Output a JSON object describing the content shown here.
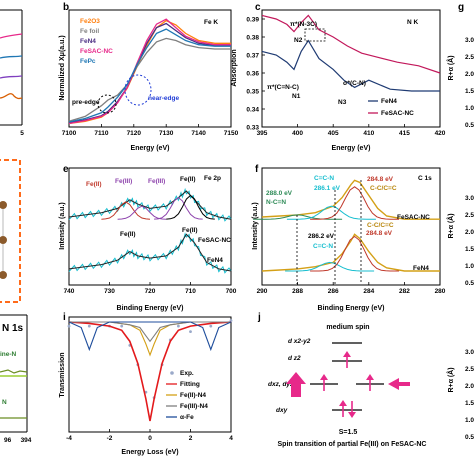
{
  "figure": {
    "panel_labels": {
      "b": "b",
      "c": "c",
      "e": "e",
      "f": "f",
      "g": "g",
      "i": "i",
      "j": "j"
    },
    "left_strip": {
      "x_end_tick": "5",
      "panel_label": "N 1s",
      "labels": [
        "ine-N",
        "N"
      ],
      "ticks": [
        "96",
        "394"
      ]
    },
    "right_strip": {
      "ylabel": "R+α (Å)",
      "ticks": [
        "3.0",
        "2.5",
        "2.0",
        "1.5",
        "1.0",
        "0.5",
        "3.0",
        "2.5",
        "2.0",
        "1.5",
        "1.0",
        "0.5",
        "3.0",
        "2.5",
        "2.0",
        "1.5",
        "1.0",
        "0.5"
      ]
    }
  },
  "chart_data": [
    {
      "id": "b",
      "type": "line",
      "subtitle": "Fe K",
      "xlabel": "Energy (eV)",
      "ylabel": "Normalized Xμ(a.u.)",
      "xlim": [
        7100,
        7150
      ],
      "x_ticks": [
        "7100",
        "7110",
        "7120",
        "7130",
        "7140",
        "7150"
      ],
      "series": [
        {
          "name": "Fe2O3",
          "color": "#ff7f0e",
          "x": [
            7100,
            7105,
            7110,
            7112,
            7115,
            7118,
            7121,
            7124,
            7127,
            7130,
            7133,
            7136,
            7140,
            7145,
            7150
          ],
          "y": [
            0.05,
            0.08,
            0.14,
            0.2,
            0.35,
            0.55,
            0.85,
            1.15,
            1.4,
            1.5,
            1.44,
            1.32,
            1.22,
            1.18,
            1.18
          ]
        },
        {
          "name": "Fe foil",
          "color": "#7f7f7f",
          "x": [
            7100,
            7105,
            7110,
            7112,
            7115,
            7118,
            7121,
            7124,
            7127,
            7130,
            7133,
            7136,
            7140,
            7145,
            7150
          ],
          "y": [
            0.08,
            0.15,
            0.3,
            0.38,
            0.45,
            0.6,
            0.85,
            1.05,
            1.2,
            1.25,
            1.22,
            1.16,
            1.12,
            1.1,
            1.1
          ]
        },
        {
          "name": "FeN4",
          "color": "#4b2e83",
          "x": [
            7100,
            7105,
            7110,
            7112,
            7115,
            7118,
            7121,
            7124,
            7127,
            7130,
            7133,
            7136,
            7140,
            7145,
            7150
          ],
          "y": [
            0.06,
            0.1,
            0.16,
            0.22,
            0.36,
            0.56,
            0.88,
            1.18,
            1.4,
            1.46,
            1.36,
            1.26,
            1.18,
            1.15,
            1.15
          ]
        },
        {
          "name": "FeSAC-NC",
          "color": "#e7298a",
          "x": [
            7100,
            7105,
            7110,
            7112,
            7115,
            7118,
            7121,
            7124,
            7127,
            7130,
            7133,
            7136,
            7140,
            7145,
            7150
          ],
          "y": [
            0.05,
            0.09,
            0.15,
            0.2,
            0.34,
            0.56,
            0.9,
            1.22,
            1.45,
            1.52,
            1.4,
            1.28,
            1.2,
            1.16,
            1.16
          ]
        },
        {
          "name": "FePc",
          "color": "#1f77b4",
          "x": [
            7100,
            7105,
            7110,
            7112,
            7115,
            7118,
            7121,
            7124,
            7127,
            7130,
            7133,
            7136,
            7140,
            7145,
            7150
          ],
          "y": [
            0.07,
            0.12,
            0.2,
            0.28,
            0.42,
            0.6,
            0.88,
            1.12,
            1.32,
            1.38,
            1.3,
            1.22,
            1.16,
            1.14,
            1.14
          ]
        }
      ],
      "annotations": [
        "pre-edge",
        "near-edge"
      ]
    },
    {
      "id": "c",
      "type": "line",
      "subtitle": "N K",
      "xlabel": "Energy (eV)",
      "ylabel": "Absorption",
      "xlim": [
        395,
        420
      ],
      "ylim": [
        0.33,
        0.395
      ],
      "x_ticks": [
        "395",
        "400",
        "405",
        "410",
        "415",
        "420"
      ],
      "y_ticks": [
        "0.39",
        "0.38",
        "0.37",
        "0.36",
        "0.35",
        "0.34",
        "0.33"
      ],
      "series": [
        {
          "name": "FeN4",
          "color": "#1f3b73",
          "x": [
            395,
            397,
            398.5,
            399.5,
            400.5,
            401.5,
            403,
            405,
            406.5,
            408,
            410,
            413,
            416,
            420
          ],
          "y": [
            0.372,
            0.37,
            0.366,
            0.362,
            0.372,
            0.378,
            0.368,
            0.362,
            0.356,
            0.352,
            0.356,
            0.351,
            0.35,
            0.35
          ]
        },
        {
          "name": "FeSAC-NC",
          "color": "#c2185b",
          "x": [
            395,
            397,
            398.5,
            399.5,
            400.5,
            401.5,
            403,
            405,
            407,
            409,
            411,
            414,
            417,
            420
          ],
          "y": [
            0.392,
            0.39,
            0.387,
            0.383,
            0.388,
            0.392,
            0.384,
            0.38,
            0.375,
            0.371,
            0.369,
            0.366,
            0.364,
            0.36
          ]
        }
      ],
      "annotations": [
        "π*(N-3C)",
        "N2",
        "π*(C=N-C)",
        "N1",
        "N3",
        "σ*(C-N)"
      ]
    },
    {
      "id": "e",
      "type": "line",
      "subtitle": "Fe 2p",
      "xlabel": "Binding Energy (eV)",
      "ylabel": "Intensity (a.u.)",
      "xlim": [
        740,
        700
      ],
      "x_ticks": [
        "740",
        "730",
        "720",
        "710",
        "700"
      ],
      "series": [
        {
          "name": "FeSAC-NC",
          "color": "#17becf",
          "x": [
            740,
            736,
            732,
            728,
            725,
            723,
            720,
            716,
            713,
            711,
            709,
            706,
            703,
            700
          ],
          "y": [
            0.62,
            0.64,
            0.66,
            0.7,
            0.78,
            0.74,
            0.7,
            0.72,
            0.8,
            0.86,
            0.78,
            0.66,
            0.62,
            0.6
          ]
        },
        {
          "name": "FeN4",
          "color": "#17becf",
          "x": [
            740,
            736,
            732,
            728,
            725,
            723,
            720,
            716,
            713,
            711,
            709,
            706,
            703,
            700
          ],
          "y": [
            0.14,
            0.16,
            0.18,
            0.22,
            0.3,
            0.26,
            0.24,
            0.26,
            0.34,
            0.46,
            0.38,
            0.2,
            0.14,
            0.12
          ]
        }
      ],
      "annotations": [
        "Fe(II)",
        "Fe(III)",
        "Fe(III)",
        "Fe(II)",
        "Fe(II)",
        "Fe(II)"
      ],
      "legend": [
        "FeSAC-NC",
        "FeN4"
      ]
    },
    {
      "id": "f",
      "type": "line",
      "subtitle": "C 1s",
      "xlabel": "Binding Energy (eV)",
      "ylabel": "Intensity (a.u.)",
      "xlim": [
        290,
        280
      ],
      "x_ticks": [
        "290",
        "288",
        "286",
        "284",
        "282",
        "280"
      ],
      "series": [
        {
          "name": "FeSAC-NC",
          "color": "#d4a017",
          "x": [
            290,
            289,
            288,
            287,
            286,
            285.5,
            285,
            284.8,
            284.5,
            284,
            283.5,
            283,
            282,
            281,
            280
          ],
          "y": [
            0.62,
            0.63,
            0.64,
            0.66,
            0.72,
            0.8,
            0.92,
            0.96,
            0.94,
            0.82,
            0.7,
            0.63,
            0.6,
            0.6,
            0.6
          ]
        },
        {
          "name": "FeN4",
          "color": "#d4a017",
          "x": [
            290,
            289,
            288,
            287,
            286,
            285.5,
            285,
            284.8,
            284.5,
            284,
            283.5,
            283,
            282,
            281,
            280
          ],
          "y": [
            0.12,
            0.13,
            0.14,
            0.16,
            0.2,
            0.28,
            0.4,
            0.46,
            0.42,
            0.3,
            0.2,
            0.15,
            0.12,
            0.12,
            0.12
          ]
        }
      ],
      "annotations": [
        "286.1 eV",
        "C=C-N",
        "284.8 eV",
        "C-C/C=C",
        "288.0 eV",
        "N-C=N",
        "286.2 eV",
        "C=C-N",
        "284.8 eV",
        "C-C/C=C"
      ],
      "legend": [
        "FeSAC-NC",
        "FeN4"
      ]
    },
    {
      "id": "i",
      "type": "line",
      "xlabel": "Energy Loss (eV)",
      "ylabel": "Transmission",
      "xlim": [
        -4,
        4
      ],
      "x_ticks": [
        "-4",
        "-2",
        "0",
        "2",
        "4"
      ],
      "series": [
        {
          "name": "Exp.",
          "color": "#9aa9c9",
          "x": [
            -4,
            -3,
            -2,
            -1.4,
            -1,
            -0.6,
            -0.2,
            0,
            0.2,
            0.6,
            1,
            1.4,
            2,
            3,
            4
          ],
          "y": [
            1.0,
            0.99,
            0.98,
            0.97,
            0.93,
            0.85,
            0.74,
            0.64,
            0.74,
            0.85,
            0.93,
            0.97,
            0.98,
            0.99,
            1.0
          ]
        },
        {
          "name": "Fitting",
          "color": "#e31a1c",
          "x": [
            -4,
            -3,
            -2,
            -1.4,
            -1,
            -0.6,
            -0.2,
            0,
            0.2,
            0.6,
            1,
            1.4,
            2,
            3,
            4
          ],
          "y": [
            1.0,
            0.995,
            0.985,
            0.97,
            0.93,
            0.85,
            0.72,
            0.64,
            0.72,
            0.85,
            0.93,
            0.97,
            0.985,
            0.995,
            1.0
          ]
        },
        {
          "name": "Fe(II)-N4",
          "color": "#d4a017",
          "x": [
            -4,
            -2,
            -1,
            -0.5,
            -0.2,
            0,
            0.2,
            0.5,
            1,
            2,
            4
          ],
          "y": [
            1.0,
            1.0,
            0.99,
            0.97,
            0.92,
            0.88,
            0.92,
            0.97,
            0.99,
            1.0,
            1.0
          ]
        },
        {
          "name": "Fe(III)-N4",
          "color": "#7f7f7f",
          "x": [
            -4,
            -2,
            -1,
            -0.5,
            -0.2,
            0,
            0.2,
            0.5,
            1,
            2,
            4
          ],
          "y": [
            1.0,
            1.0,
            0.99,
            0.98,
            0.95,
            0.93,
            0.95,
            0.98,
            0.99,
            1.0,
            1.0
          ]
        },
        {
          "name": "α-Fe",
          "color": "#1f4e9c",
          "x": [
            -4,
            -3.4,
            -3,
            -2.6,
            -2,
            -1,
            0,
            1,
            2,
            2.6,
            3,
            3.4,
            4
          ],
          "y": [
            1.0,
            0.98,
            0.9,
            0.98,
            1.0,
            1.0,
            1.0,
            1.0,
            1.0,
            0.98,
            0.9,
            0.98,
            1.0
          ]
        }
      ],
      "legend": [
        "Exp.",
        "Fitting",
        "Fe(II)-N4",
        "Fe(III)-N4",
        "α-Fe"
      ]
    }
  ],
  "panel_j": {
    "title": "medium spin",
    "levels": [
      "d x2-y2",
      "d z2",
      "dxz, dyz",
      "dxy"
    ],
    "spin": "S=1.5",
    "caption": "Spin transition of partial Fe(III) on FeSAC-NC"
  }
}
